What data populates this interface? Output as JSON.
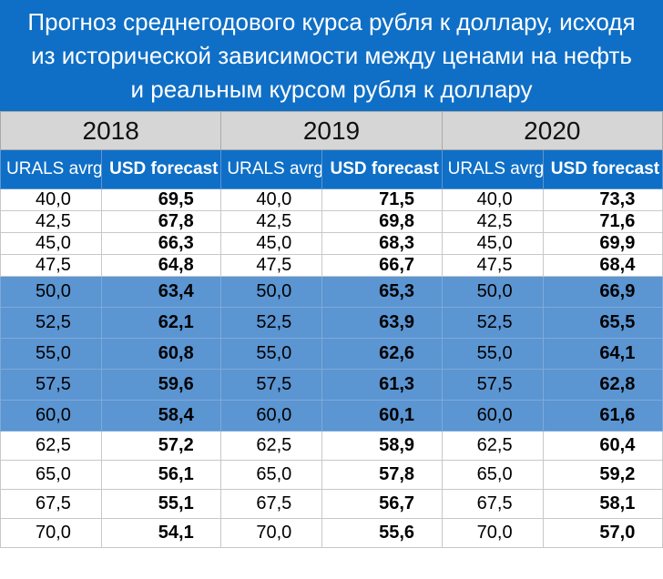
{
  "title": {
    "line1": "Прогноз среднегодового курса рубля к доллару, исходя",
    "line2": "из исторической зависимости между ценами на нефть",
    "line3": "и реальным курсом рубля к доллару"
  },
  "years": [
    "2018",
    "2019",
    "2020"
  ],
  "headers": {
    "urals": "URALS avrg",
    "usd": "USD forecast"
  },
  "rows": [
    {
      "urals": "40,0",
      "vals": [
        "69,5",
        "71,5",
        "73,3"
      ],
      "highlight": false,
      "section": "top"
    },
    {
      "urals": "42,5",
      "vals": [
        "67,8",
        "69,8",
        "71,6"
      ],
      "highlight": false,
      "section": "top"
    },
    {
      "urals": "45,0",
      "vals": [
        "66,3",
        "68,3",
        "69,9"
      ],
      "highlight": false,
      "section": "top"
    },
    {
      "urals": "47,5",
      "vals": [
        "64,8",
        "66,7",
        "68,4"
      ],
      "highlight": false,
      "section": "top"
    },
    {
      "urals": "50,0",
      "vals": [
        "63,4",
        "65,3",
        "66,9"
      ],
      "highlight": true,
      "section": "mid"
    },
    {
      "urals": "52,5",
      "vals": [
        "62,1",
        "63,9",
        "65,5"
      ],
      "highlight": true,
      "section": "mid"
    },
    {
      "urals": "55,0",
      "vals": [
        "60,8",
        "62,6",
        "64,1"
      ],
      "highlight": true,
      "section": "mid"
    },
    {
      "urals": "57,5",
      "vals": [
        "59,6",
        "61,3",
        "62,8"
      ],
      "highlight": true,
      "section": "mid"
    },
    {
      "urals": "60,0",
      "vals": [
        "58,4",
        "60,1",
        "61,6"
      ],
      "highlight": true,
      "section": "mid"
    },
    {
      "urals": "62,5",
      "vals": [
        "57,2",
        "58,9",
        "60,4"
      ],
      "highlight": false,
      "section": "post"
    },
    {
      "urals": "65,0",
      "vals": [
        "56,1",
        "57,8",
        "59,2"
      ],
      "highlight": false,
      "section": "post"
    },
    {
      "urals": "67,5",
      "vals": [
        "55,1",
        "56,7",
        "58,1"
      ],
      "highlight": false,
      "section": "post"
    },
    {
      "urals": "70,0",
      "vals": [
        "54,1",
        "55,6",
        "57,0"
      ],
      "highlight": false,
      "section": "post"
    }
  ],
  "colors": {
    "title_bg": "#0f6fc6",
    "header_bg": "#0f6fc6",
    "year_bg": "#d6d6d6",
    "highlight_bg": "#5b95d2"
  }
}
